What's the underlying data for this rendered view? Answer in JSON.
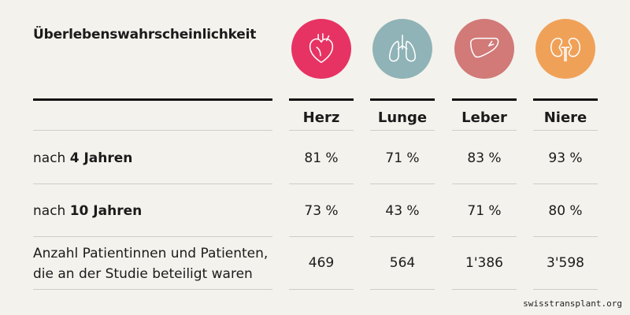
{
  "title": "Überlebenswahrscheinlichkeit",
  "organs": [
    {
      "name": "Herz",
      "icon": "heart-icon",
      "color": "#e63363"
    },
    {
      "name": "Lunge",
      "icon": "lungs-icon",
      "color": "#8fb3b6"
    },
    {
      "name": "Leber",
      "icon": "liver-icon",
      "color": "#d17a78"
    },
    {
      "name": "Niere",
      "icon": "kidneys-icon",
      "color": "#f0a158"
    }
  ],
  "rows": [
    {
      "prefix": "nach ",
      "bold": "4 Jahren",
      "line2": "",
      "cells": [
        "81 %",
        "71 %",
        "83 %",
        "93 %"
      ]
    },
    {
      "prefix": "nach ",
      "bold": "10 Jahren",
      "line2": "",
      "cells": [
        "73 %",
        "43 %",
        "71 %",
        "80 %"
      ]
    },
    {
      "prefix": "Anzahl Patientinnen und Patienten,",
      "bold": "",
      "line2": "die an der Studie beteiligt waren",
      "cells": [
        "469",
        "564",
        "1'386",
        "3'598"
      ]
    }
  ],
  "watermark": "swisstransplant.org",
  "chart_data": {
    "type": "table",
    "title": "Überlebenswahrscheinlichkeit",
    "columns": [
      "Herz",
      "Lunge",
      "Leber",
      "Niere"
    ],
    "rows": [
      {
        "label": "nach 4 Jahren",
        "values": [
          81,
          71,
          83,
          93
        ],
        "unit": "%"
      },
      {
        "label": "nach 10 Jahren",
        "values": [
          73,
          43,
          71,
          80
        ],
        "unit": "%"
      },
      {
        "label": "Anzahl Patientinnen und Patienten, die an der Studie beteiligt waren",
        "values": [
          469,
          564,
          1386,
          3598
        ]
      }
    ]
  }
}
